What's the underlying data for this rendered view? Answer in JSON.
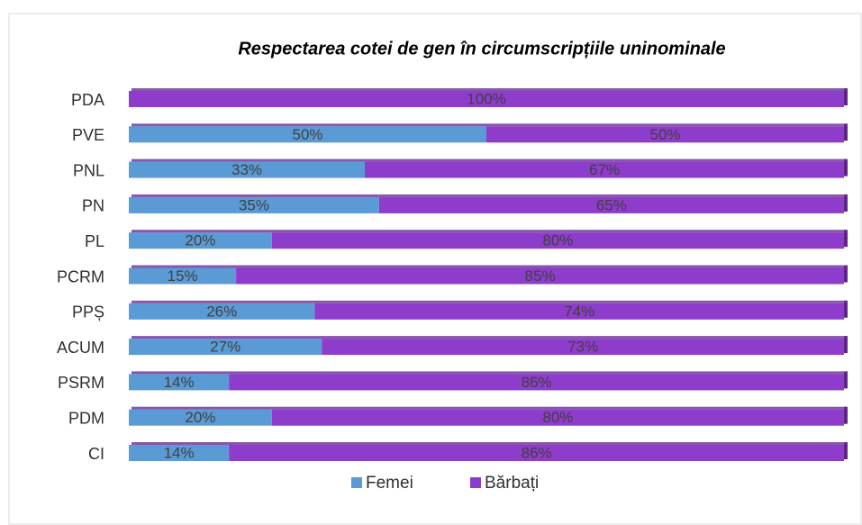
{
  "chart_data": {
    "type": "stacked_barh",
    "title": "Respectarea cotei de gen în circumscripțiile uninominale",
    "categories": [
      "PDA",
      "PVE",
      "PNL",
      "PN",
      "PL",
      "PCRM",
      "PPȘ",
      "ACUM",
      "PSRM",
      "PDM",
      "CI"
    ],
    "series": [
      {
        "name": "Femei",
        "color": "#5b9bd5",
        "values": [
          0,
          50,
          33,
          35,
          20,
          15,
          26,
          27,
          14,
          20,
          14
        ],
        "value_labels": [
          null,
          "50%",
          "33%",
          "35%",
          "20%",
          "15%",
          "26%",
          "27%",
          "14%",
          "20%",
          "14%"
        ]
      },
      {
        "name": "Bărbați",
        "color": "#8e3ccb",
        "values": [
          100,
          50,
          67,
          65,
          80,
          85,
          74,
          73,
          86,
          80,
          86
        ],
        "value_labels": [
          "100%",
          "50%",
          "67%",
          "65%",
          "80%",
          "85%",
          "74%",
          "73%",
          "86%",
          "80%",
          "86%"
        ]
      }
    ],
    "xlim": [
      0,
      100
    ]
  }
}
